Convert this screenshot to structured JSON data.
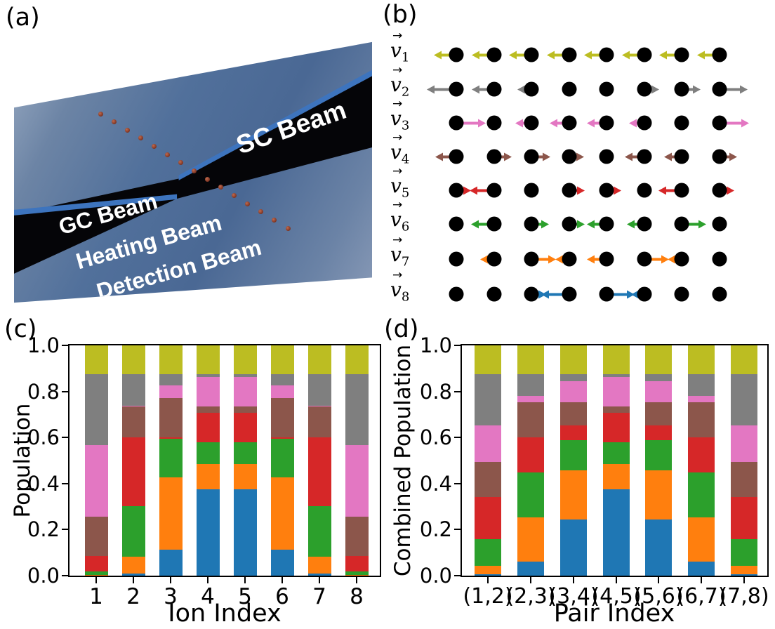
{
  "figure_labels": {
    "a": "(a)",
    "b": "(b)",
    "c": "(c)",
    "d": "(d)"
  },
  "panel_a": {
    "description": "render of ion chain with crossed laser beams on blue trap surface",
    "beam_labels": {
      "sc": "SC Beam",
      "gc": "GC Beam",
      "heating": "Heating Beam",
      "detection": "Detection Beam"
    },
    "ion_count": 15,
    "colors": {
      "surface": "#5d779f",
      "beam": "#050508",
      "beam_edge_highlight": "#3d74be",
      "ion": "#8c4130",
      "text": "#ffffff"
    }
  },
  "panel_b": {
    "description": "axial normal-mode displacement vectors of an 8-ion chain",
    "ions_per_row": 8,
    "modes": [
      {
        "label": "v",
        "sub": "1",
        "vec": "→",
        "color": "#bcbd22",
        "displacements": [
          -0.36,
          -0.36,
          -0.36,
          -0.36,
          -0.36,
          -0.36,
          -0.36,
          -0.36
        ]
      },
      {
        "label": "v",
        "sub": "2",
        "vec": "→",
        "color": "#7f7f7f",
        "displacements": [
          -0.53,
          -0.37,
          -0.17,
          0,
          0,
          0.12,
          0.28,
          0.5
        ]
      },
      {
        "label": "v",
        "sub": "3",
        "vec": "→",
        "color": "#e377c2",
        "displacements": [
          0.53,
          0,
          -0.22,
          -0.3,
          -0.3,
          -0.2,
          0,
          0.53
        ]
      },
      {
        "label": "v",
        "sub": "4",
        "vec": "→",
        "color": "#8c564b",
        "displacements": [
          -0.33,
          0.25,
          0.28,
          0.13,
          0,
          -0.3,
          -0.25,
          0.25
        ]
      },
      {
        "label": "v",
        "sub": "5",
        "vec": "→",
        "color": "#d62728",
        "displacements": [
          0.13,
          -0.42,
          0,
          0.2,
          0.17,
          0,
          -0.39,
          0.13
        ]
      },
      {
        "label": "v",
        "sub": "6",
        "vec": "→",
        "color": "#2ca02c",
        "displacements": [
          0,
          -0.38,
          0.25,
          0.2,
          -0.3,
          -0.25,
          0.42,
          0
        ]
      },
      {
        "label": "v",
        "sub": "7",
        "vec": "→",
        "color": "#ff7f0e",
        "displacements": [
          0,
          -0.17,
          0.42,
          -0.17,
          -0.3,
          0.42,
          -0.17,
          0
        ]
      },
      {
        "label": "v",
        "sub": "8",
        "vec": "→",
        "color": "#1f77b4",
        "displacements": [
          0,
          0,
          0.13,
          -0.5,
          0.5,
          -0.13,
          0,
          0
        ]
      }
    ]
  },
  "chart_data": [
    {
      "id": "c",
      "type": "bar",
      "stacked": true,
      "title": "",
      "xlabel": "Ion Index",
      "ylabel": "Population",
      "categories": [
        "1",
        "2",
        "3",
        "4",
        "5",
        "6",
        "7",
        "8"
      ],
      "ylim": [
        0.0,
        1.0
      ],
      "yticks": [
        "0.0",
        "0.2",
        "0.4",
        "0.6",
        "0.8",
        "1.0"
      ],
      "grid": false,
      "legend": "none",
      "series": [
        {
          "name": "mode 8",
          "color": "#1f77b4",
          "values": [
            0.002,
            0.008,
            0.113,
            0.374,
            0.374,
            0.113,
            0.008,
            0.002
          ]
        },
        {
          "name": "mode 7",
          "color": "#ff7f0e",
          "values": [
            0.002,
            0.073,
            0.313,
            0.112,
            0.112,
            0.313,
            0.073,
            0.002
          ]
        },
        {
          "name": "mode 6",
          "color": "#2ca02c",
          "values": [
            0.015,
            0.22,
            0.17,
            0.092,
            0.092,
            0.17,
            0.22,
            0.015
          ]
        },
        {
          "name": "mode 5",
          "color": "#d62728",
          "values": [
            0.066,
            0.3,
            0.004,
            0.13,
            0.13,
            0.004,
            0.3,
            0.066
          ]
        },
        {
          "name": "mode 4",
          "color": "#8c564b",
          "values": [
            0.171,
            0.134,
            0.172,
            0.026,
            0.026,
            0.172,
            0.134,
            0.171
          ]
        },
        {
          "name": "mode 3",
          "color": "#e377c2",
          "values": [
            0.311,
            0.004,
            0.054,
            0.128,
            0.128,
            0.054,
            0.004,
            0.311
          ]
        },
        {
          "name": "mode 2",
          "color": "#7f7f7f",
          "values": [
            0.308,
            0.136,
            0.049,
            0.013,
            0.013,
            0.049,
            0.136,
            0.308
          ]
        },
        {
          "name": "mode 1",
          "color": "#bcbd22",
          "values": [
            0.125,
            0.125,
            0.125,
            0.125,
            0.125,
            0.125,
            0.125,
            0.125
          ]
        }
      ]
    },
    {
      "id": "d",
      "type": "bar",
      "stacked": true,
      "title": "",
      "xlabel": "Pair Index",
      "ylabel": "Combined Population",
      "categories": [
        "(1,2)",
        "(2,3)",
        "(3,4)",
        "(4,5)",
        "(5,6)",
        "(6,7)",
        "(7,8)"
      ],
      "ylim": [
        0.0,
        1.0
      ],
      "yticks": [
        "0.0",
        "0.2",
        "0.4",
        "0.6",
        "0.8",
        "1.0"
      ],
      "grid": false,
      "legend": "none",
      "series": [
        {
          "name": "mode 8",
          "color": "#1f77b4",
          "values": [
            0.005,
            0.06,
            0.244,
            0.374,
            0.244,
            0.06,
            0.005
          ]
        },
        {
          "name": "mode 7",
          "color": "#ff7f0e",
          "values": [
            0.038,
            0.193,
            0.212,
            0.112,
            0.212,
            0.193,
            0.038
          ]
        },
        {
          "name": "mode 6",
          "color": "#2ca02c",
          "values": [
            0.117,
            0.195,
            0.131,
            0.092,
            0.131,
            0.195,
            0.117
          ]
        },
        {
          "name": "mode 5",
          "color": "#d62728",
          "values": [
            0.183,
            0.152,
            0.067,
            0.13,
            0.067,
            0.152,
            0.183
          ]
        },
        {
          "name": "mode 4",
          "color": "#8c564b",
          "values": [
            0.152,
            0.153,
            0.099,
            0.026,
            0.099,
            0.153,
            0.152
          ]
        },
        {
          "name": "mode 3",
          "color": "#e377c2",
          "values": [
            0.158,
            0.029,
            0.091,
            0.128,
            0.091,
            0.029,
            0.158
          ]
        },
        {
          "name": "mode 2",
          "color": "#7f7f7f",
          "values": [
            0.222,
            0.093,
            0.031,
            0.013,
            0.031,
            0.093,
            0.222
          ]
        },
        {
          "name": "mode 1",
          "color": "#bcbd22",
          "values": [
            0.125,
            0.125,
            0.125,
            0.125,
            0.125,
            0.125,
            0.125
          ]
        }
      ]
    }
  ]
}
